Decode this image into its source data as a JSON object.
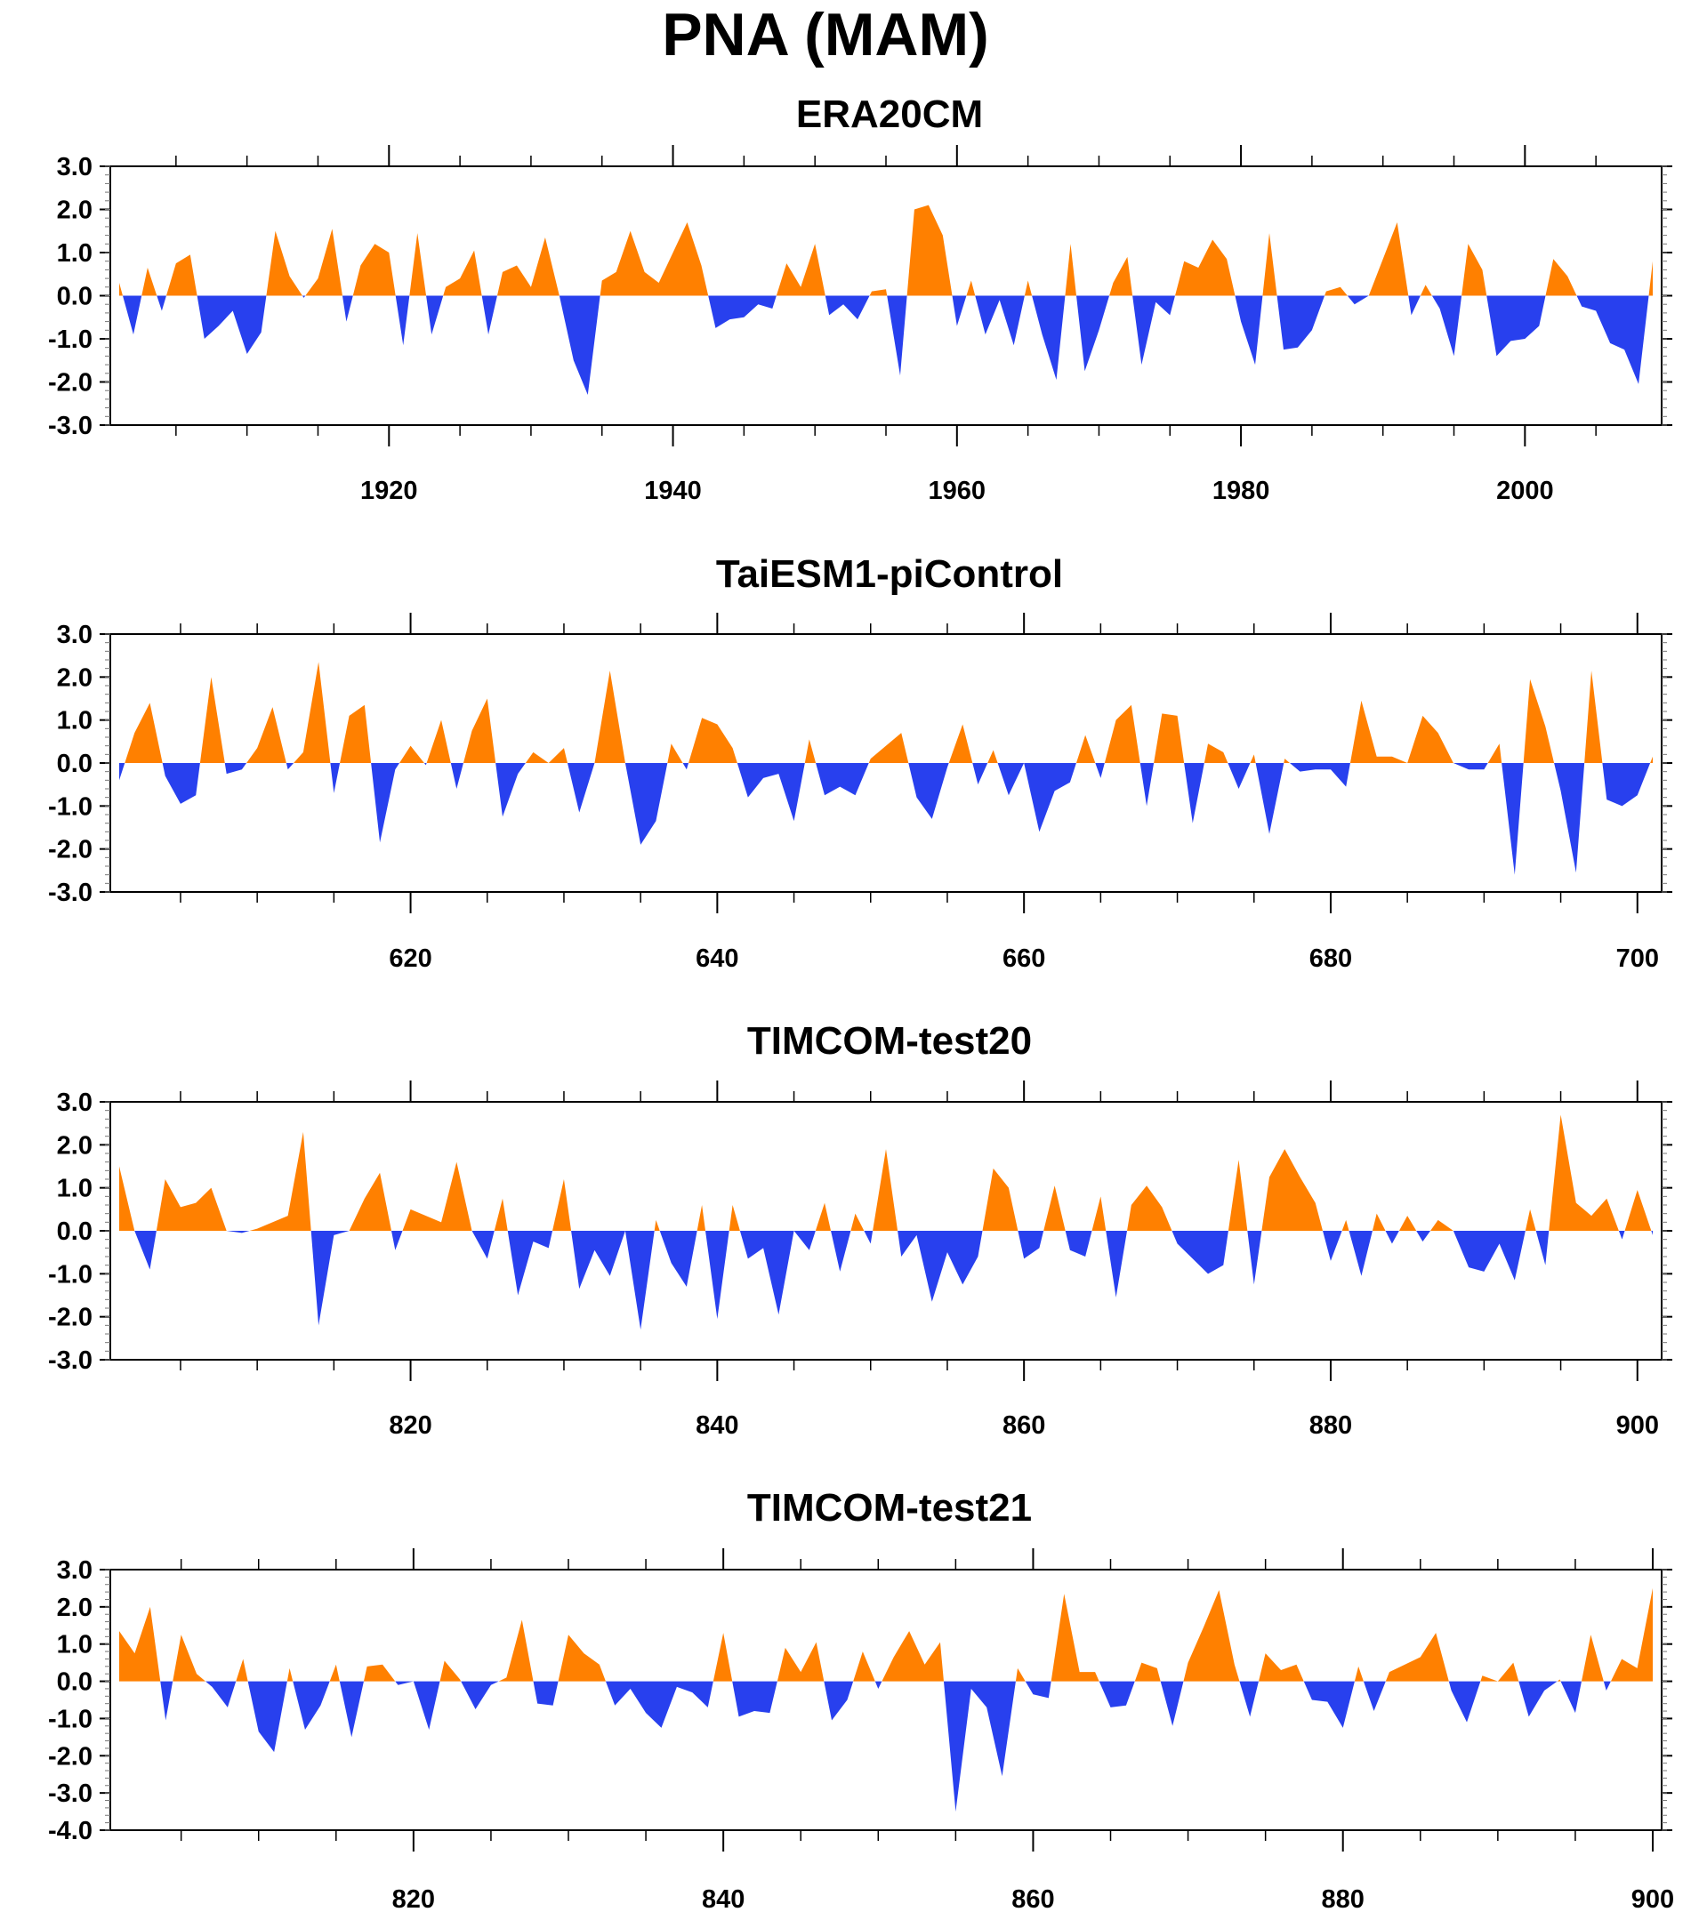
{
  "page_title": "PNA (MAM)",
  "colors": {
    "positive": "#FF8000",
    "negative": "#2840EE",
    "axis": "#000000"
  },
  "chart_data": [
    {
      "type": "area",
      "title": "ERA20CM",
      "xlabel": "",
      "ylabel": "",
      "xlim": [
        1901,
        2010
      ],
      "ylim": [
        -3.0,
        3.0
      ],
      "x_ticks": [
        1920,
        1940,
        1960,
        1980,
        2000
      ],
      "y_ticks": [
        "3.0",
        "2.0",
        "1.0",
        "0.0",
        "-1.0",
        "-2.0",
        "-3.0"
      ],
      "grid": false,
      "x_start": 1901,
      "values": [
        0.3,
        -0.9,
        0.65,
        -0.35,
        0.75,
        0.95,
        -1.0,
        -0.7,
        -0.35,
        -1.35,
        -0.85,
        1.5,
        0.45,
        -0.05,
        0.4,
        1.55,
        -0.6,
        0.7,
        1.2,
        1.0,
        -1.15,
        1.45,
        -0.9,
        0.2,
        0.4,
        1.05,
        -0.9,
        0.55,
        0.7,
        0.2,
        1.35,
        0.0,
        -1.5,
        -2.3,
        0.35,
        0.55,
        1.5,
        0.55,
        0.3,
        1.0,
        1.7,
        0.7,
        -0.75,
        -0.55,
        -0.5,
        -0.2,
        -0.3,
        0.75,
        0.2,
        1.2,
        -0.45,
        -0.2,
        -0.55,
        0.1,
        0.15,
        -1.85,
        2.0,
        2.1,
        1.4,
        -0.7,
        0.35,
        -0.9,
        -0.1,
        -1.15,
        0.35,
        -0.9,
        -1.95,
        1.2,
        -1.75,
        -0.8,
        0.3,
        0.9,
        -1.6,
        -0.15,
        -0.45,
        0.8,
        0.65,
        1.3,
        0.85,
        -0.6,
        -1.6,
        1.45,
        -1.25,
        -1.2,
        -0.8,
        0.1,
        0.2,
        -0.2,
        0.0,
        0.85,
        1.7,
        -0.45,
        0.25,
        -0.3,
        -1.4,
        1.2,
        0.6,
        -1.4,
        -1.05,
        -1.0,
        -0.7,
        0.85,
        0.45,
        -0.25,
        -0.35,
        -1.1,
        -1.25,
        -2.05,
        0.8
      ]
    },
    {
      "type": "area",
      "title": "TaiESM1-piControl",
      "xlabel": "",
      "ylabel": "",
      "xlim": [
        601,
        700
      ],
      "ylim": [
        -3.0,
        3.0
      ],
      "x_ticks": [
        620,
        640,
        660,
        680,
        700
      ],
      "y_ticks": [
        "3.0",
        "2.0",
        "1.0",
        "0.0",
        "-1.0",
        "-2.0",
        "-3.0"
      ],
      "grid": false,
      "x_start": 601,
      "values": [
        -0.4,
        0.7,
        1.4,
        -0.3,
        -0.95,
        -0.75,
        2.0,
        -0.25,
        -0.15,
        0.35,
        1.3,
        -0.15,
        0.25,
        2.35,
        -0.7,
        1.1,
        1.35,
        -1.85,
        -0.15,
        0.4,
        -0.05,
        1.0,
        -0.6,
        0.75,
        1.5,
        -1.25,
        -0.25,
        0.25,
        0.0,
        0.35,
        -1.15,
        0.0,
        2.15,
        0.0,
        -1.9,
        -1.35,
        0.45,
        -0.15,
        1.05,
        0.9,
        0.35,
        -0.8,
        -0.35,
        -0.25,
        -1.35,
        0.55,
        -0.75,
        -0.55,
        -0.75,
        0.1,
        0.4,
        0.7,
        -0.8,
        -1.3,
        -0.1,
        0.9,
        -0.5,
        0.3,
        -0.75,
        0.0,
        -1.6,
        -0.65,
        -0.45,
        0.65,
        -0.35,
        1.0,
        1.35,
        -1.0,
        1.15,
        1.1,
        -1.4,
        0.45,
        0.25,
        -0.6,
        0.2,
        -1.65,
        0.1,
        -0.2,
        -0.15,
        -0.15,
        -0.55,
        1.45,
        0.15,
        0.15,
        0.0,
        1.1,
        0.7,
        0.0,
        -0.15,
        -0.15,
        0.45,
        -2.6,
        1.95,
        0.85,
        -0.65,
        -2.55,
        2.15,
        -0.85,
        -1.0,
        -0.75,
        0.15
      ]
    },
    {
      "type": "area",
      "title": "TIMCOM-test20",
      "xlabel": "",
      "ylabel": "",
      "xlim": [
        801,
        900
      ],
      "ylim": [
        -3.0,
        3.0
      ],
      "x_ticks": [
        820,
        840,
        860,
        880,
        900
      ],
      "y_ticks": [
        "3.0",
        "2.0",
        "1.0",
        "0.0",
        "-1.0",
        "-2.0",
        "-3.0"
      ],
      "grid": false,
      "x_start": 801,
      "values": [
        1.5,
        0.0,
        -0.9,
        1.2,
        0.55,
        0.65,
        1.0,
        0.0,
        -0.05,
        0.05,
        0.2,
        0.35,
        2.3,
        -2.2,
        -0.1,
        0.0,
        0.75,
        1.35,
        -0.45,
        0.5,
        0.35,
        0.2,
        1.6,
        0.0,
        -0.65,
        0.75,
        -1.5,
        -0.25,
        -0.4,
        1.2,
        -1.35,
        -0.45,
        -1.05,
        0.0,
        -2.3,
        0.25,
        -0.75,
        -1.3,
        0.6,
        -2.05,
        0.6,
        -0.65,
        -0.4,
        -1.95,
        0.0,
        -0.45,
        0.65,
        -0.95,
        0.4,
        -0.3,
        1.9,
        -0.6,
        -0.1,
        -1.65,
        -0.5,
        -1.25,
        -0.6,
        1.45,
        1.0,
        -0.65,
        -0.4,
        1.05,
        -0.45,
        -0.6,
        0.8,
        -1.55,
        0.6,
        1.05,
        0.55,
        -0.3,
        -0.65,
        -1.0,
        -0.8,
        1.65,
        -1.25,
        1.25,
        1.9,
        1.25,
        0.65,
        -0.7,
        0.25,
        -1.05,
        0.4,
        -0.3,
        0.35,
        -0.25,
        0.25,
        0.0,
        -0.85,
        -0.95,
        -0.3,
        -1.15,
        0.5,
        -0.8,
        2.7,
        0.65,
        0.35,
        0.75,
        -0.2,
        0.95,
        -0.1
      ]
    },
    {
      "type": "area",
      "title": "TIMCOM-test21",
      "xlabel": "",
      "ylabel": "",
      "xlim": [
        801,
        900
      ],
      "ylim": [
        -4.0,
        3.0
      ],
      "x_ticks": [
        820,
        840,
        860,
        880,
        900
      ],
      "y_ticks": [
        "3.0",
        "2.0",
        "1.0",
        "0.0",
        "-1.0",
        "-2.0",
        "-3.0",
        "-4.0"
      ],
      "grid": false,
      "x_start": 801,
      "values": [
        1.35,
        0.75,
        2.0,
        -1.05,
        1.25,
        0.2,
        -0.15,
        -0.7,
        0.6,
        -1.35,
        -1.9,
        0.35,
        -1.3,
        -0.65,
        0.45,
        -1.5,
        0.4,
        0.45,
        -0.1,
        0.0,
        -1.3,
        0.55,
        0.05,
        -0.75,
        -0.1,
        0.1,
        1.65,
        -0.6,
        -0.65,
        1.25,
        0.75,
        0.45,
        -0.65,
        -0.2,
        -0.85,
        -1.25,
        -0.15,
        -0.3,
        -0.7,
        1.3,
        -0.95,
        -0.8,
        -0.85,
        0.9,
        0.25,
        1.05,
        -1.05,
        -0.5,
        0.8,
        -0.2,
        0.65,
        1.35,
        0.45,
        1.05,
        -3.5,
        -0.2,
        -0.7,
        -2.55,
        0.35,
        -0.35,
        -0.45,
        2.35,
        0.25,
        0.25,
        -0.7,
        -0.65,
        0.5,
        0.35,
        -1.2,
        0.5,
        1.45,
        2.45,
        0.45,
        -0.95,
        0.75,
        0.3,
        0.45,
        -0.5,
        -0.55,
        -1.25,
        0.4,
        -0.8,
        0.25,
        0.45,
        0.65,
        1.3,
        -0.25,
        -1.1,
        0.15,
        0.0,
        0.5,
        -0.95,
        -0.25,
        0.05,
        -0.85,
        1.25,
        -0.25,
        0.6,
        0.35,
        2.5
      ]
    }
  ]
}
